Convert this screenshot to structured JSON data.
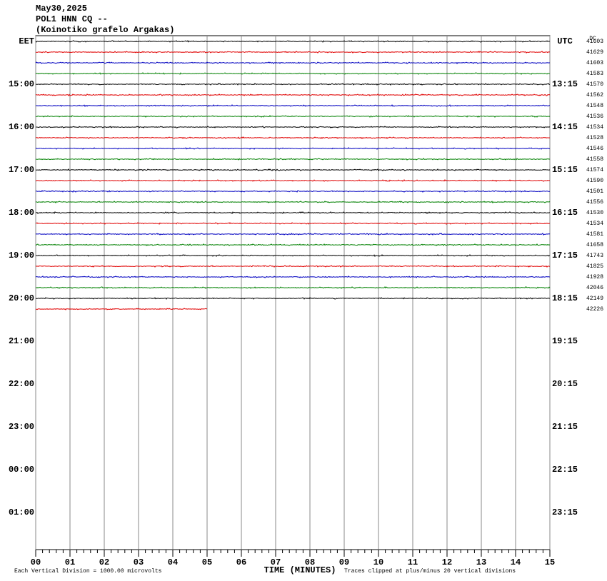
{
  "header": [
    "May30,2025",
    "POL1 HNN CQ --",
    "(Koinotiko grafelo Argakas)"
  ],
  "left_labels": [
    "EET",
    "15:00",
    "16:00",
    "17:00",
    "18:00",
    "19:00",
    "20:00",
    "21:00",
    "22:00",
    "23:00",
    "00:00",
    "01:00"
  ],
  "right_labels": [
    "UTC",
    "13:15",
    "14:15",
    "15:15",
    "16:15",
    "17:15",
    "18:15",
    "19:15",
    "20:15",
    "21:15",
    "22:15",
    "23:15"
  ],
  "dc_title": "DC",
  "trace_colors": [
    "#000000",
    "#e00000",
    "#0000c0",
    "#008000"
  ],
  "dc": [
    41603,
    41629,
    41603,
    41583,
    41570,
    41562,
    41548,
    41536,
    41534,
    41528,
    41546,
    41558,
    41574,
    41590,
    41501,
    41556,
    41530,
    41534,
    41581,
    41658,
    41743,
    41825,
    41928,
    42046,
    42149,
    42226
  ],
  "last_trace_end_minute": 5,
  "xlim": [
    0,
    15
  ],
  "xticks": [
    {
      "value": 0,
      "label": "00"
    },
    {
      "value": 1,
      "label": "01"
    },
    {
      "value": 2,
      "label": "02"
    },
    {
      "value": 3,
      "label": "03"
    },
    {
      "value": 4,
      "label": "04"
    },
    {
      "value": 5,
      "label": "05"
    },
    {
      "value": 6,
      "label": "06"
    },
    {
      "value": 7,
      "label": "07"
    },
    {
      "value": 8,
      "label": "08"
    },
    {
      "value": 9,
      "label": "09"
    },
    {
      "value": 10,
      "label": "10"
    },
    {
      "value": 11,
      "label": "11"
    },
    {
      "value": 12,
      "label": "12"
    },
    {
      "value": 13,
      "label": "13"
    },
    {
      "value": 14,
      "label": "14"
    },
    {
      "value": 15,
      "label": "15"
    }
  ],
  "x_label": "TIME (MINUTES)",
  "note_left": "Each Vertical Division = 1000.00 microvolts",
  "note_right": "Traces clipped at plus/minus 20 vertical divisions"
}
